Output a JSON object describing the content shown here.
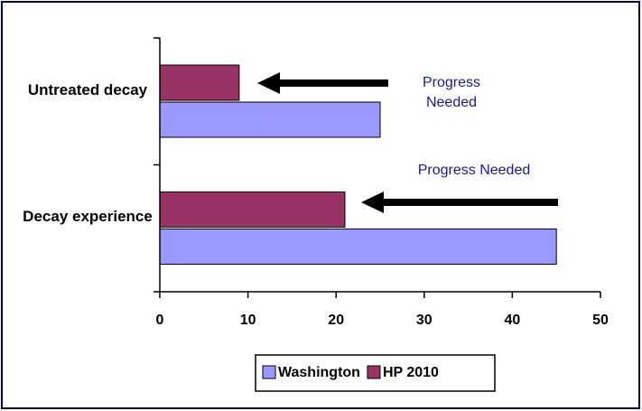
{
  "chart_data": {
    "type": "hbar",
    "categories": [
      "Untreated decay",
      "Decay experience"
    ],
    "series": [
      {
        "name": "Washington",
        "color": "#9999ff",
        "values": [
          25,
          45
        ]
      },
      {
        "name": "HP 2010",
        "color": "#993366",
        "values": [
          9,
          21
        ]
      }
    ],
    "xlim": [
      0,
      50
    ],
    "xticks": [
      0,
      10,
      20,
      30,
      40,
      50
    ],
    "annotations": [
      "Progress Needed",
      "Progress Needed"
    ],
    "legend": "bottom"
  }
}
